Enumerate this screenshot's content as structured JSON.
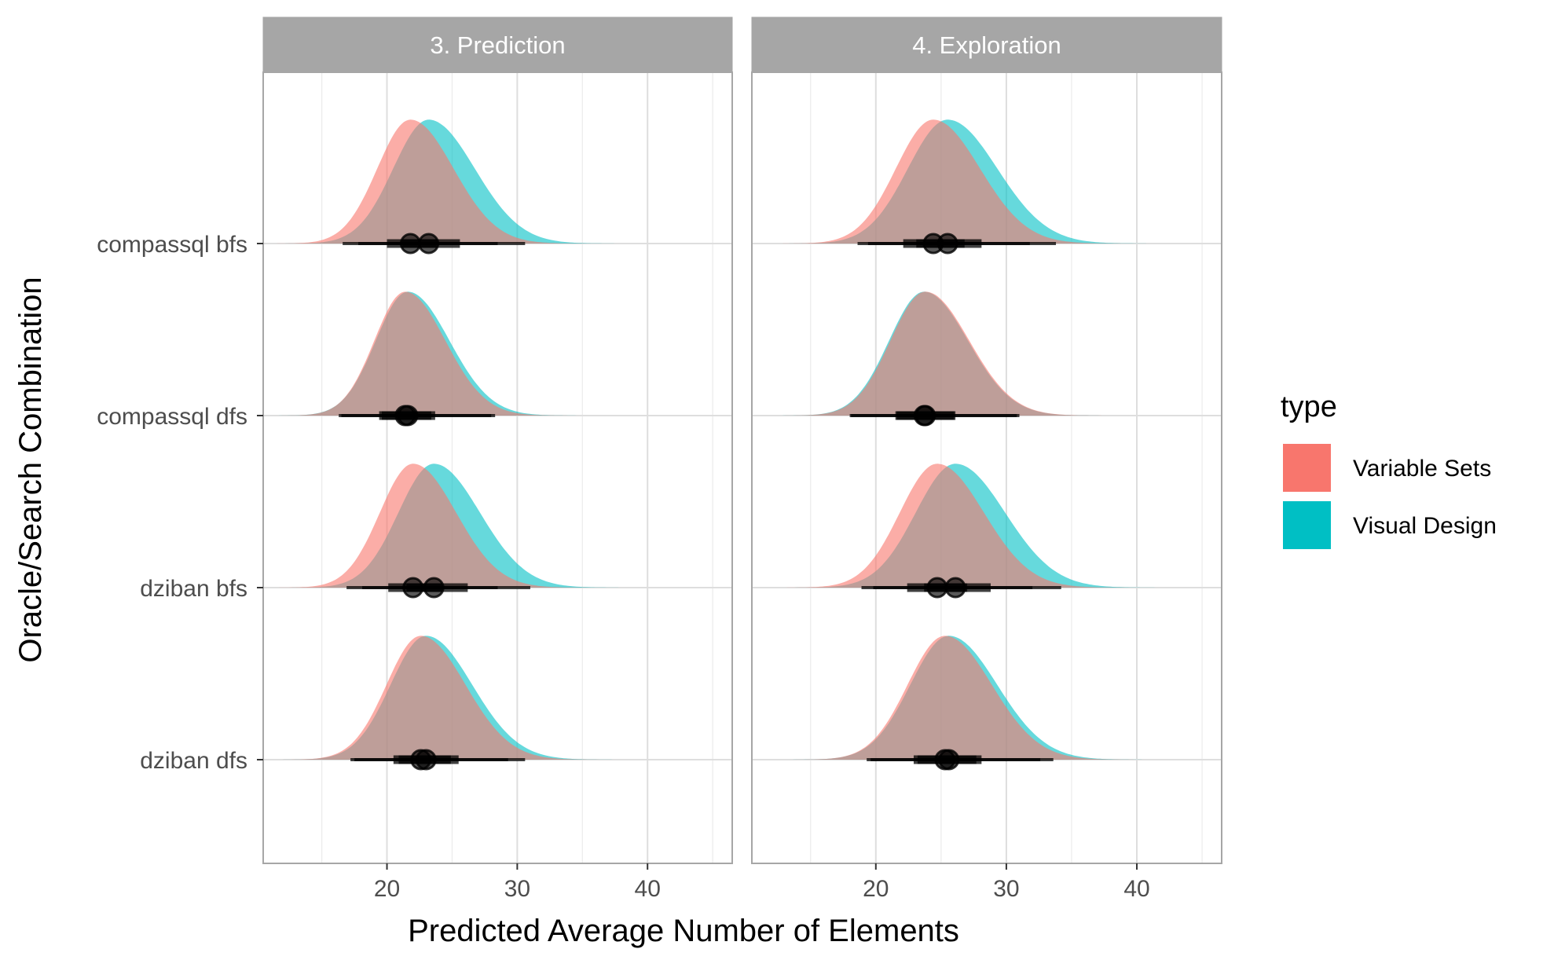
{
  "chart_data": {
    "type": "area",
    "subtype": "faceted half-eye (density + interval) plot",
    "xlabel": "Predicted Average Number of Elements",
    "ylabel": "Oracle/Search Combination",
    "xlim": [
      10.5,
      46.5
    ],
    "x_ticks": [
      20,
      30,
      40
    ],
    "categories": [
      "compassql bfs",
      "compassql dfs",
      "dziban bfs",
      "dziban dfs"
    ],
    "grid": true,
    "legend": {
      "title": "type",
      "placement": "right",
      "entries": [
        {
          "name": "Variable Sets",
          "color": "#F8766D"
        },
        {
          "name": "Visual Design",
          "color": "#00BFC4"
        }
      ]
    },
    "facets": [
      {
        "name": "3. Prediction",
        "rows": [
          {
            "category": "compassql bfs",
            "series": [
              {
                "name": "Variable Sets",
                "median": 21.8,
                "sd": 2.9,
                "skew": 1.3,
                "inner": [
                  20.0,
                  23.8
                ],
                "outer": [
                  16.6,
                  28.5
                ]
              },
              {
                "name": "Visual Design",
                "median": 23.2,
                "sd": 3.1,
                "skew": 1.3,
                "inner": [
                  21.2,
                  25.6
                ],
                "outer": [
                  17.8,
                  30.6
                ]
              }
            ]
          },
          {
            "category": "compassql dfs",
            "series": [
              {
                "name": "Variable Sets",
                "median": 21.4,
                "sd": 2.7,
                "skew": 1.3,
                "inner": [
                  19.4,
                  23.4
                ],
                "outer": [
                  16.3,
                  28.0
                ]
              },
              {
                "name": "Visual Design",
                "median": 21.6,
                "sd": 2.8,
                "skew": 1.3,
                "inner": [
                  19.6,
                  23.7
                ],
                "outer": [
                  16.5,
                  28.3
                ]
              }
            ]
          },
          {
            "category": "dziban bfs",
            "series": [
              {
                "name": "Variable Sets",
                "median": 22.0,
                "sd": 2.9,
                "skew": 1.3,
                "inner": [
                  20.1,
                  24.2
                ],
                "outer": [
                  16.9,
                  28.5
                ]
              },
              {
                "name": "Visual Design",
                "median": 23.6,
                "sd": 3.1,
                "skew": 1.3,
                "inner": [
                  21.5,
                  26.2
                ],
                "outer": [
                  18.1,
                  31.0
                ]
              }
            ]
          },
          {
            "category": "dziban dfs",
            "series": [
              {
                "name": "Variable Sets",
                "median": 22.6,
                "sd": 3.0,
                "skew": 1.3,
                "inner": [
                  20.5,
                  24.9
                ],
                "outer": [
                  17.2,
                  29.3
                ]
              },
              {
                "name": "Visual Design",
                "median": 23.0,
                "sd": 3.1,
                "skew": 1.3,
                "inner": [
                  20.9,
                  25.5
                ],
                "outer": [
                  17.5,
                  30.6
                ]
              }
            ]
          }
        ]
      },
      {
        "name": "4. Exploration",
        "rows": [
          {
            "category": "compassql bfs",
            "series": [
              {
                "name": "Variable Sets",
                "median": 24.4,
                "sd": 3.2,
                "skew": 1.25,
                "inner": [
                  22.1,
                  26.8
                ],
                "outer": [
                  18.6,
                  31.8
                ]
              },
              {
                "name": "Visual Design",
                "median": 25.5,
                "sd": 3.4,
                "skew": 1.25,
                "inner": [
                  23.1,
                  28.1
                ],
                "outer": [
                  19.4,
                  33.8
                ]
              }
            ]
          },
          {
            "category": "compassql dfs",
            "series": [
              {
                "name": "Variable Sets",
                "median": 23.8,
                "sd": 3.0,
                "skew": 1.25,
                "inner": [
                  21.6,
                  26.1
                ],
                "outer": [
                  18.1,
                  31.0
                ]
              },
              {
                "name": "Visual Design",
                "median": 23.7,
                "sd": 3.0,
                "skew": 1.25,
                "inner": [
                  21.5,
                  26.0
                ],
                "outer": [
                  18.0,
                  30.8
                ]
              }
            ]
          },
          {
            "category": "dziban bfs",
            "series": [
              {
                "name": "Variable Sets",
                "median": 24.7,
                "sd": 3.2,
                "skew": 1.25,
                "inner": [
                  22.4,
                  27.0
                ],
                "outer": [
                  18.9,
                  32.0
                ]
              },
              {
                "name": "Visual Design",
                "median": 26.1,
                "sd": 3.4,
                "skew": 1.25,
                "inner": [
                  23.7,
                  28.8
                ],
                "outer": [
                  19.8,
                  34.2
                ]
              }
            ]
          },
          {
            "category": "dziban dfs",
            "series": [
              {
                "name": "Variable Sets",
                "median": 25.3,
                "sd": 3.2,
                "skew": 1.25,
                "inner": [
                  22.9,
                  27.7
                ],
                "outer": [
                  19.3,
                  32.6
                ]
              },
              {
                "name": "Visual Design",
                "median": 25.6,
                "sd": 3.3,
                "skew": 1.25,
                "inner": [
                  23.2,
                  28.1
                ],
                "outer": [
                  19.6,
                  33.6
                ]
              }
            ]
          }
        ]
      }
    ]
  }
}
